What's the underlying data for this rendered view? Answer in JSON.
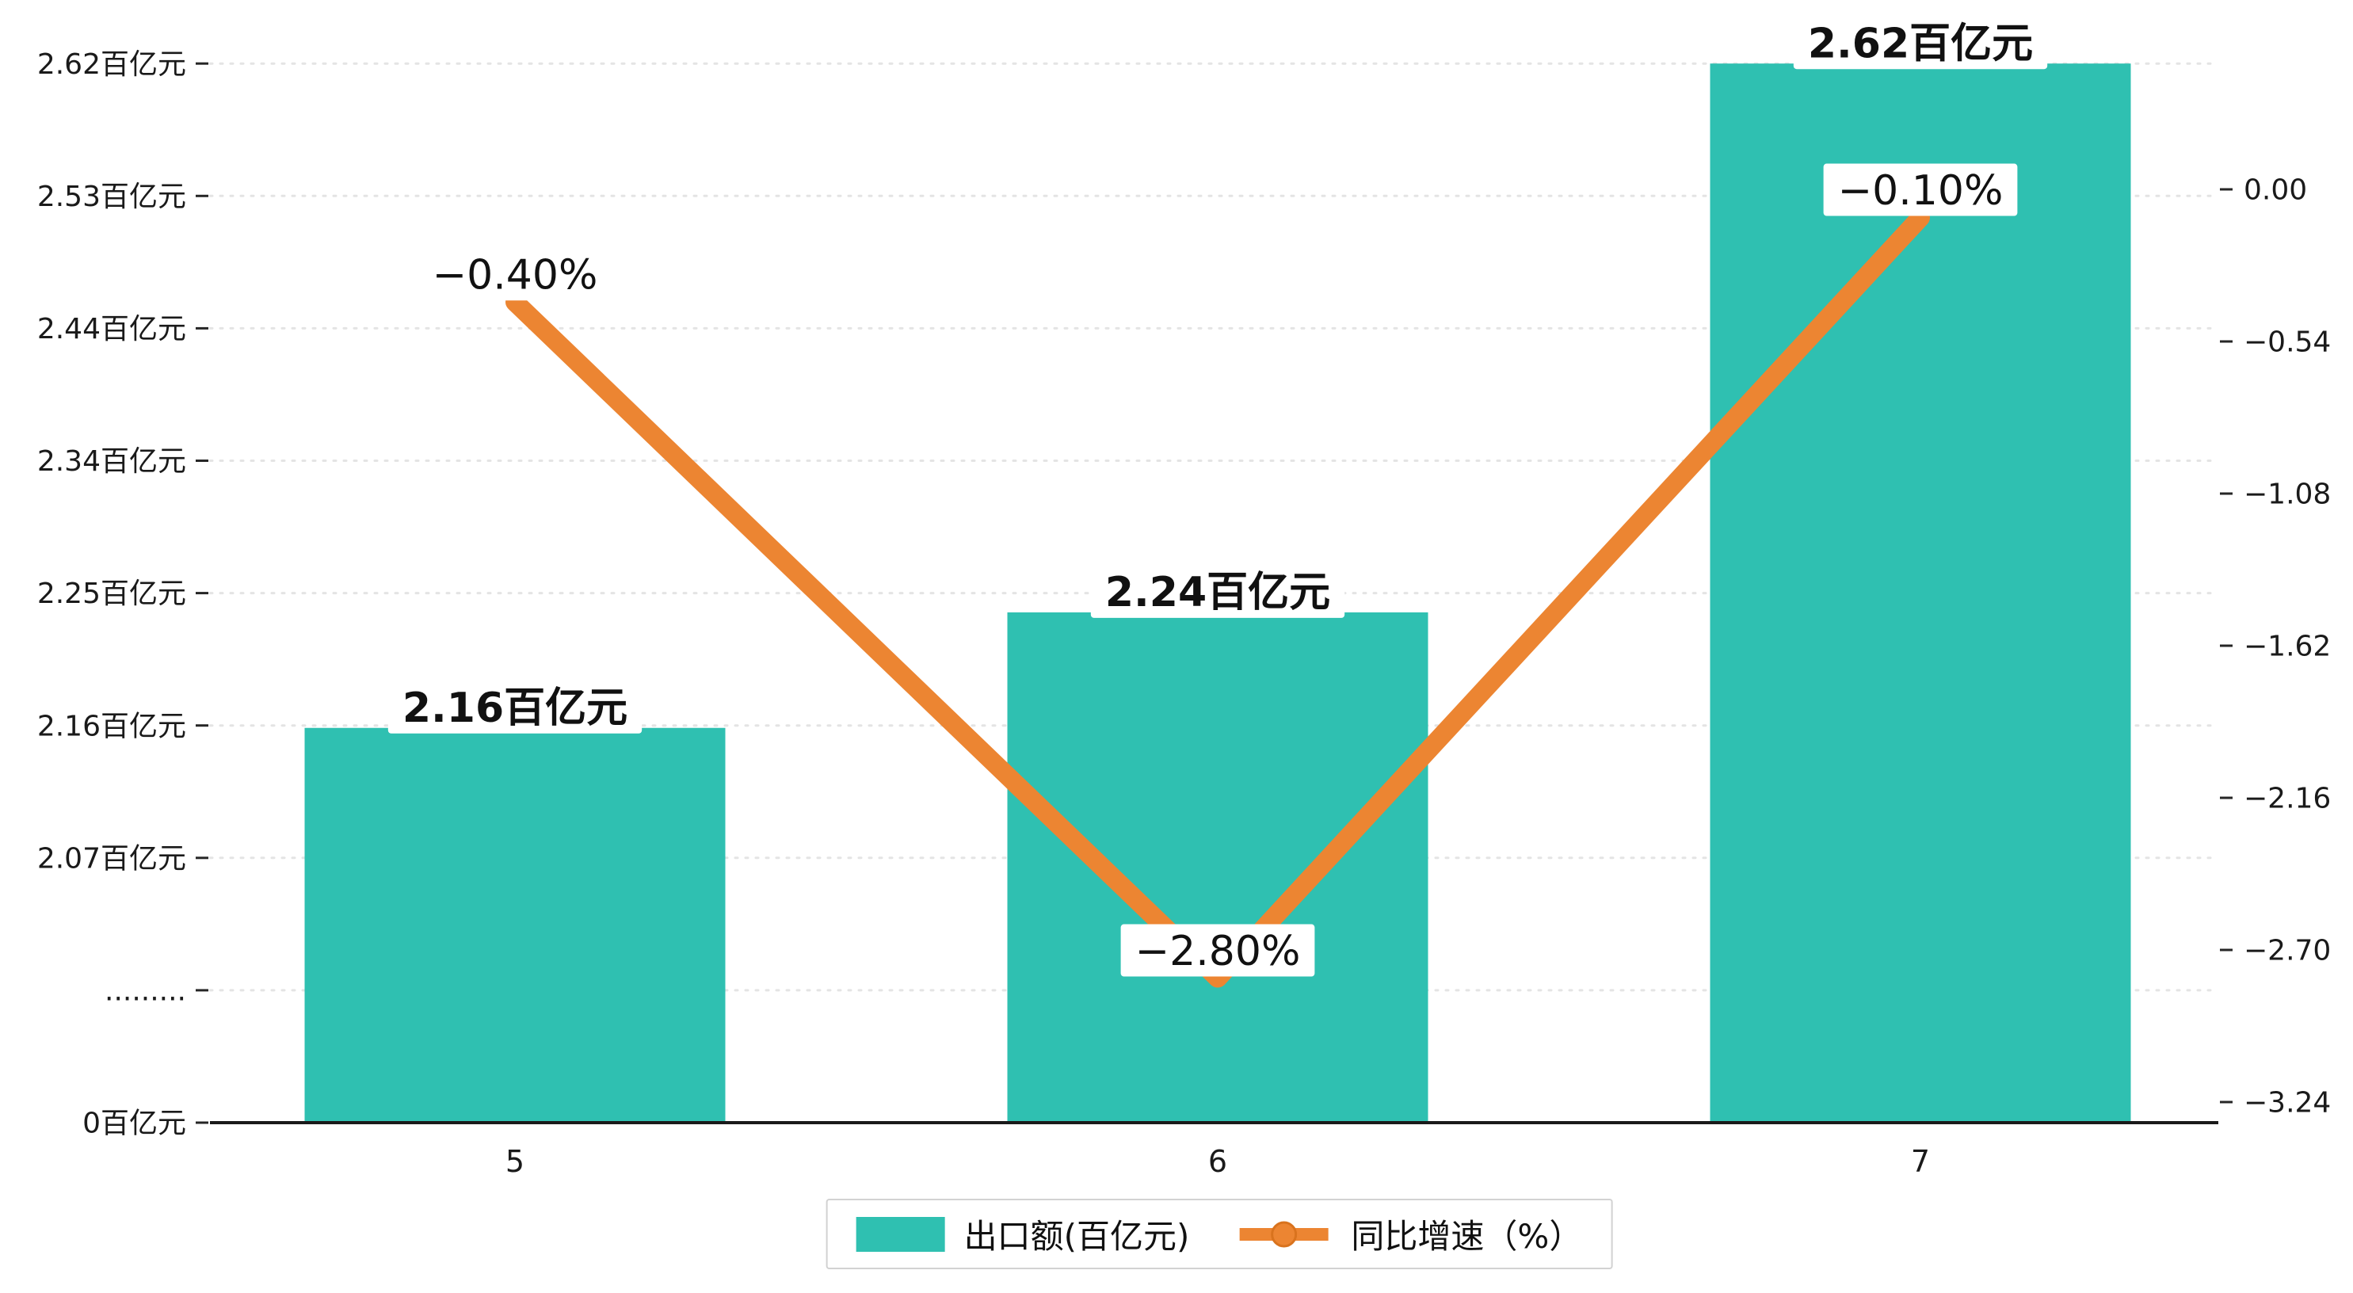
{
  "chart_data": {
    "type": "bar+line",
    "title": "",
    "categories": [
      "5",
      "6",
      "7"
    ],
    "series": [
      {
        "name": "出口额(百亿元)",
        "type": "bar",
        "values": [
          2.16,
          2.24,
          2.62
        ],
        "data_labels": [
          "2.16百亿元",
          "2.24百亿元",
          "2.62百亿元"
        ],
        "color": "#2fc0b1"
      },
      {
        "name": "同比增速（%）",
        "type": "line",
        "values": [
          -0.4,
          -2.8,
          -0.1
        ],
        "data_labels": [
          "−0.40%",
          "−2.80%",
          "−0.10%"
        ],
        "color": "#ec8532"
      }
    ],
    "left_axis": {
      "unit": "百亿元",
      "axis_break": true,
      "tick_labels": [
        "0百亿元",
        ".........",
        "2.07百亿元",
        "2.16百亿元",
        "2.25百亿元",
        "2.34百亿元",
        "2.44百亿元",
        "2.53百亿元",
        "2.62百亿元"
      ],
      "range_labeled": [
        2.07,
        2.62
      ]
    },
    "right_axis": {
      "tick_labels": [
        "0.00",
        "−0.54",
        "−1.08",
        "−1.62",
        "−2.16",
        "−2.70",
        "−3.24"
      ],
      "tick_values": [
        0,
        -0.54,
        -1.08,
        -1.62,
        -2.16,
        -2.7,
        -3.24
      ]
    },
    "legend": {
      "position": "bottom-center",
      "items": [
        {
          "label": "出口额(百亿元)",
          "marker": "square",
          "color": "#2fc0b1"
        },
        {
          "label": "同比增速（%）",
          "marker": "line-circle",
          "color": "#ec8532"
        }
      ]
    },
    "grid": {
      "horizontal": true,
      "style": "dotted",
      "color": "#e4e4e4"
    }
  },
  "colors": {
    "bar": "#2fc0b1",
    "line": "#ec8532",
    "line_marker_edge": "#d9731e",
    "text": "#1a1a1a",
    "axis": "#1a1a1a",
    "grid": "#e4e4e4",
    "label_box": "#ffffff",
    "legend_border": "#d2d2d2"
  }
}
